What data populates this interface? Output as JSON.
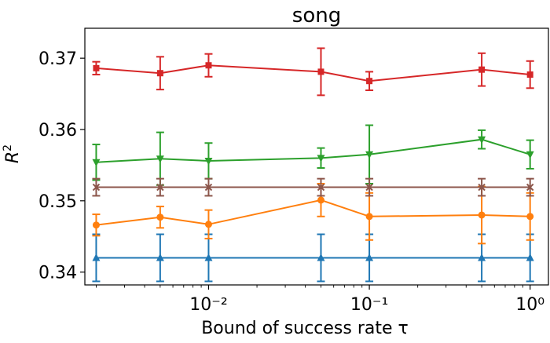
{
  "chart_data": {
    "type": "line",
    "title": "song",
    "xlabel": "Bound of success rate τ",
    "ylabel": "R²",
    "xscale": "log",
    "x": [
      0.002,
      0.005,
      0.01,
      0.05,
      0.1,
      0.5,
      1.0
    ],
    "xlim": [
      0.0017,
      1.3
    ],
    "ylim": [
      0.3382,
      0.3742
    ],
    "yticks": [
      0.34,
      0.35,
      0.36,
      0.37
    ],
    "ytick_labels": [
      "0.34",
      "0.35",
      "0.36",
      "0.37"
    ],
    "xticks": [
      0.01,
      0.1,
      1.0
    ],
    "xtick_labels": [
      "10⁻²",
      "10⁻¹",
      "10⁰"
    ],
    "grid": false,
    "legend": null,
    "series": [
      {
        "color": "#1f77b4",
        "marker": "triangle-up",
        "values": [
          0.342,
          0.342,
          0.342,
          0.342,
          0.342,
          0.342,
          0.342
        ],
        "errors": [
          0.0033,
          0.0033,
          0.0033,
          0.0033,
          0.0033,
          0.0033,
          0.0033
        ]
      },
      {
        "color": "#ff7f0e",
        "marker": "circle",
        "values": [
          0.3466,
          0.3477,
          0.3467,
          0.3501,
          0.3478,
          0.348,
          0.3478
        ],
        "errors": [
          0.0015,
          0.0015,
          0.002,
          0.0023,
          0.0033,
          0.004,
          0.0033
        ]
      },
      {
        "color": "#2ca02c",
        "marker": "triangle-down",
        "values": [
          0.3554,
          0.3559,
          0.3556,
          0.356,
          0.3565,
          0.3586,
          0.3565
        ],
        "errors": [
          0.0025,
          0.0037,
          0.0025,
          0.0014,
          0.0041,
          0.0013,
          0.002
        ]
      },
      {
        "color": "#8c564b",
        "marker": "x",
        "values": [
          0.3519,
          0.3519,
          0.3519,
          0.3519,
          0.3519,
          0.3519,
          0.3519
        ],
        "errors": [
          0.0012,
          0.0012,
          0.0012,
          0.0012,
          0.0012,
          0.0012,
          0.0012
        ]
      },
      {
        "color": "#d62728",
        "marker": "square",
        "values": [
          0.3686,
          0.3679,
          0.369,
          0.3681,
          0.3668,
          0.3684,
          0.3677
        ],
        "errors": [
          0.0009,
          0.0023,
          0.0016,
          0.0033,
          0.0013,
          0.0023,
          0.0019
        ]
      }
    ]
  }
}
